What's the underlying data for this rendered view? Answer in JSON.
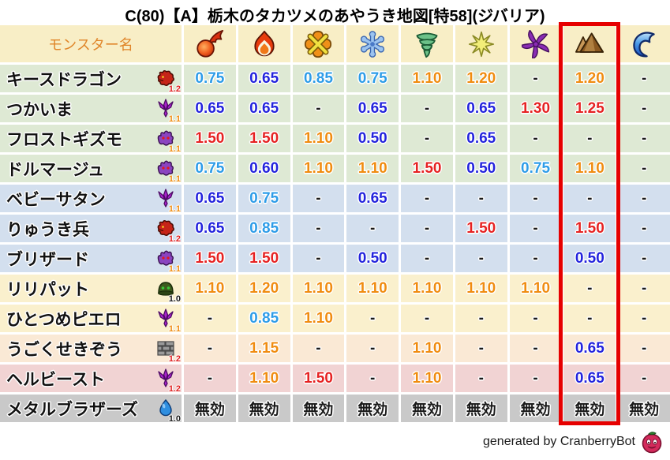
{
  "title": "C(80)【A】栃木のタカツメのあやうき地図[特58](ジバリア)",
  "footer": {
    "credit": "generated by CranberryBot",
    "icon": "cranberry-icon"
  },
  "palette": {
    "value_strong_resist": "#2323dd",
    "value_resist": "#2d9ce8",
    "value_weak": "#f08c10",
    "value_strong_weak": "#e62222",
    "value_neutral": "#1a1a1a",
    "header_bg": "#f8eec6",
    "header_text": "#e0862a",
    "highlight_border": "#e60000",
    "mult_red": "#e02020",
    "mult_orange": "#f08c10",
    "mult_black": "#1a1a1a",
    "row_green": "#dee9d4",
    "row_blue": "#d3dfee",
    "row_cream": "#faf0cd",
    "row_peach": "#fae9d5",
    "row_pink": "#f1d3d3",
    "row_gray": "#c9c9c9"
  },
  "table": {
    "name_header": "モンスター名",
    "highlighted_column_index": 7
  },
  "chart_data": {
    "type": "table",
    "title": "C(80)【A】栃木のタカツメのあやうき地図[特58](ジバリア)",
    "columns": [
      "モンスター名",
      "fireball",
      "flame",
      "cross-burst",
      "snowflake",
      "tornado",
      "star-burst",
      "pinwheel",
      "mountain",
      "wave"
    ],
    "highlighted_column": "mountain",
    "immune_label": "無効",
    "rows": [
      {
        "monster": "キースドラゴン",
        "family_icon": "dragon",
        "family_multiplier": "1.2",
        "multiplier_color": "red",
        "row_color": "green",
        "values": [
          "0.75",
          "0.65",
          "0.85",
          "0.75",
          "1.10",
          "1.20",
          "-",
          "1.20",
          "-"
        ]
      },
      {
        "monster": "つかいま",
        "family_icon": "trident",
        "family_multiplier": "1.1",
        "multiplier_color": "orange",
        "row_color": "green",
        "values": [
          "0.65",
          "0.65",
          "-",
          "0.65",
          "-",
          "0.65",
          "1.30",
          "1.25",
          "-"
        ]
      },
      {
        "monster": "フロストギズモ",
        "family_icon": "ghost",
        "family_multiplier": "1.1",
        "multiplier_color": "orange",
        "row_color": "green",
        "values": [
          "1.50",
          "1.50",
          "1.10",
          "0.50",
          "-",
          "0.65",
          "-",
          "-",
          "-"
        ]
      },
      {
        "monster": "ドルマージュ",
        "family_icon": "ghost",
        "family_multiplier": "1.1",
        "multiplier_color": "orange",
        "row_color": "green",
        "values": [
          "0.75",
          "0.60",
          "1.10",
          "1.10",
          "1.50",
          "0.50",
          "0.75",
          "1.10",
          "-"
        ]
      },
      {
        "monster": "ベビーサタン",
        "family_icon": "trident",
        "family_multiplier": "1.1",
        "multiplier_color": "orange",
        "row_color": "blue",
        "values": [
          "0.65",
          "0.75",
          "-",
          "0.65",
          "-",
          "-",
          "-",
          "-",
          "-"
        ]
      },
      {
        "monster": "りゅうき兵",
        "family_icon": "dragon",
        "family_multiplier": "1.2",
        "multiplier_color": "red",
        "row_color": "blue",
        "values": [
          "0.65",
          "0.85",
          "-",
          "-",
          "-",
          "1.50",
          "-",
          "1.50",
          "-"
        ]
      },
      {
        "monster": "ブリザード",
        "family_icon": "ghost",
        "family_multiplier": "1.1",
        "multiplier_color": "orange",
        "row_color": "blue",
        "values": [
          "1.50",
          "1.50",
          "-",
          "0.50",
          "-",
          "-",
          "-",
          "0.50",
          "-"
        ]
      },
      {
        "monster": "リリパット",
        "family_icon": "helmet",
        "family_multiplier": "1.0",
        "multiplier_color": "black",
        "row_color": "cream",
        "values": [
          "1.10",
          "1.20",
          "1.10",
          "1.10",
          "1.10",
          "1.10",
          "1.10",
          "-",
          "-"
        ]
      },
      {
        "monster": "ひとつめピエロ",
        "family_icon": "trident",
        "family_multiplier": "1.1",
        "multiplier_color": "orange",
        "row_color": "cream",
        "values": [
          "-",
          "0.85",
          "1.10",
          "-",
          "-",
          "-",
          "-",
          "-",
          "-"
        ]
      },
      {
        "monster": "うごくせきぞう",
        "family_icon": "brick",
        "family_multiplier": "1.2",
        "multiplier_color": "red",
        "row_color": "peach",
        "values": [
          "-",
          "1.15",
          "-",
          "-",
          "1.10",
          "-",
          "-",
          "0.65",
          "-"
        ]
      },
      {
        "monster": "ヘルビースト",
        "family_icon": "trident",
        "family_multiplier": "1.2",
        "multiplier_color": "red",
        "row_color": "pink",
        "values": [
          "-",
          "1.10",
          "1.50",
          "-",
          "1.10",
          "-",
          "-",
          "0.65",
          "-"
        ]
      },
      {
        "monster": "メタルブラザーズ",
        "family_icon": "slime",
        "family_multiplier": "1.0",
        "multiplier_color": "black",
        "row_color": "gray",
        "values": [
          "無効",
          "無効",
          "無効",
          "無効",
          "無効",
          "無効",
          "無効",
          "無効",
          "無効"
        ]
      }
    ]
  }
}
